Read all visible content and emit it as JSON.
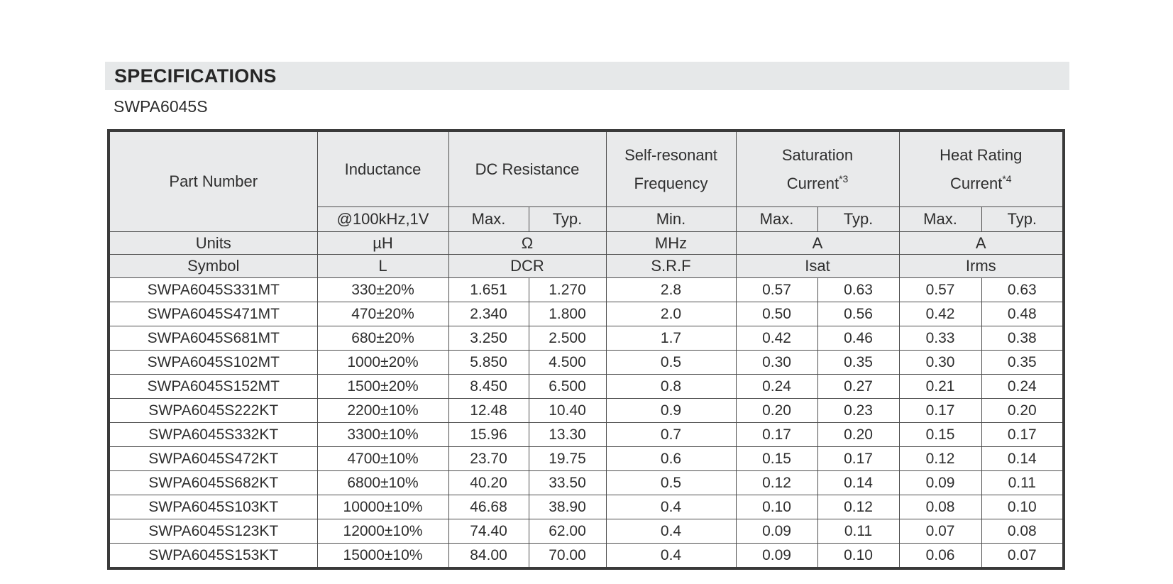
{
  "header": {
    "section_title": "SPECIFICATIONS",
    "series_name": "SWPA6045S"
  },
  "table": {
    "group_headers": {
      "part_number": "Part Number",
      "inductance": "Inductance",
      "dc_resistance": "DC Resistance",
      "srf_line1": "Self-resonant",
      "srf_line2": "Frequency",
      "saturation_line1": "Saturation",
      "saturation_line2": "Current",
      "saturation_sup": "*3",
      "heat_line1": "Heat Rating",
      "heat_line2": "Current",
      "heat_sup": "*4"
    },
    "sub_headers": [
      "@100kHz,1V",
      "Max.",
      "Typ.",
      "Min.",
      "Max.",
      "Typ.",
      "Max.",
      "Typ."
    ],
    "units_row": [
      "Units",
      "µH",
      "Ω",
      "MHz",
      "A",
      "A"
    ],
    "symbol_row": [
      "Symbol",
      "L",
      "DCR",
      "S.R.F",
      "Isat",
      "Irms"
    ],
    "rows": [
      [
        "SWPA6045S331MT",
        "330±20%",
        "1.651",
        "1.270",
        "2.8",
        "0.57",
        "0.63",
        "0.57",
        "0.63"
      ],
      [
        "SWPA6045S471MT",
        "470±20%",
        "2.340",
        "1.800",
        "2.0",
        "0.50",
        "0.56",
        "0.42",
        "0.48"
      ],
      [
        "SWPA6045S681MT",
        "680±20%",
        "3.250",
        "2.500",
        "1.7",
        "0.42",
        "0.46",
        "0.33",
        "0.38"
      ],
      [
        "SWPA6045S102MT",
        "1000±20%",
        "5.850",
        "4.500",
        "0.5",
        "0.30",
        "0.35",
        "0.30",
        "0.35"
      ],
      [
        "SWPA6045S152MT",
        "1500±20%",
        "8.450",
        "6.500",
        "0.8",
        "0.24",
        "0.27",
        "0.21",
        "0.24"
      ],
      [
        "SWPA6045S222KT",
        "2200±10%",
        "12.48",
        "10.40",
        "0.9",
        "0.20",
        "0.23",
        "0.17",
        "0.20"
      ],
      [
        "SWPA6045S332KT",
        "3300±10%",
        "15.96",
        "13.30",
        "0.7",
        "0.17",
        "0.20",
        "0.15",
        "0.17"
      ],
      [
        "SWPA6045S472KT",
        "4700±10%",
        "23.70",
        "19.75",
        "0.6",
        "0.15",
        "0.17",
        "0.12",
        "0.14"
      ],
      [
        "SWPA6045S682KT",
        "6800±10%",
        "40.20",
        "33.50",
        "0.5",
        "0.12",
        "0.14",
        "0.09",
        "0.11"
      ],
      [
        "SWPA6045S103KT",
        "10000±10%",
        "46.68",
        "38.90",
        "0.4",
        "0.10",
        "0.12",
        "0.08",
        "0.10"
      ],
      [
        "SWPA6045S123KT",
        "12000±10%",
        "74.40",
        "62.00",
        "0.4",
        "0.09",
        "0.11",
        "0.07",
        "0.08"
      ],
      [
        "SWPA6045S153KT",
        "15000±10%",
        "84.00",
        "70.00",
        "0.4",
        "0.09",
        "0.10",
        "0.06",
        "0.07"
      ]
    ]
  },
  "colors": {
    "title_bar_bg": "#e6e8e9",
    "header_cell_bg": "#e9eaeb",
    "grid_border": "#4d4d4d",
    "outer_border": "#3a3a3a",
    "text": "#2e2e2e",
    "page_bg": "#ffffff"
  }
}
